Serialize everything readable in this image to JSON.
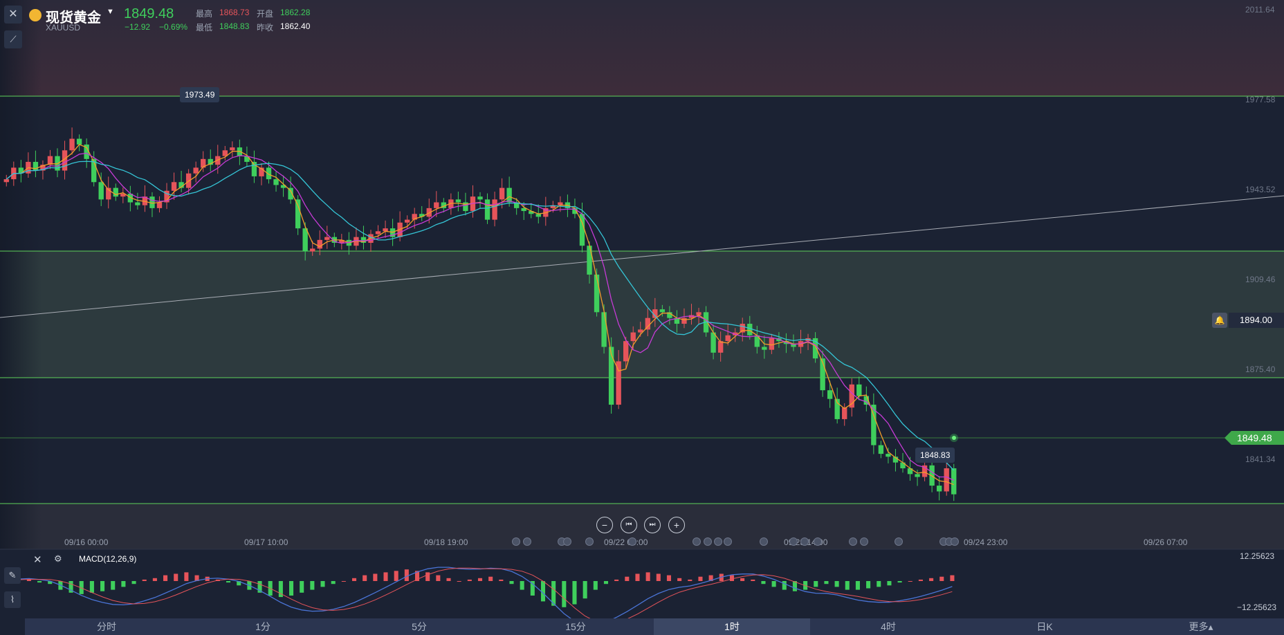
{
  "header": {
    "title": "现货黄金",
    "symbol": "XAUUSD",
    "price": "1849.48",
    "change": "−12.92",
    "change_pct": "−0.69%",
    "high_label": "最高",
    "high": "1868.73",
    "low_label": "最低",
    "low": "1848.83",
    "open_label": "开盘",
    "open": "1862.28",
    "prev_close_label": "昨收",
    "prev_close": "1862.40"
  },
  "price_axis": [
    "2011.64",
    "1977.58",
    "1943.52",
    "1909.46",
    "1875.40",
    "1841.34"
  ],
  "markers": {
    "high_tag": "1973.49",
    "low_tag": "1848.83",
    "alert_price": "1894.00",
    "current_price": "1849.48"
  },
  "time_axis": [
    "09/16 00:00",
    "09/17 10:00",
    "09/18 19:00",
    "09/22 04:00",
    "09/23 14:00",
    "09/24 23:00",
    "09/26 07:00"
  ],
  "macd": {
    "label": "MACD(12,26,9)",
    "top": "12.25623",
    "bottom": "−12.25623"
  },
  "periods": [
    {
      "label": "分时",
      "active": false
    },
    {
      "label": "1分",
      "active": false
    },
    {
      "label": "5分",
      "active": false
    },
    {
      "label": "15分",
      "active": false
    },
    {
      "label": "1时",
      "active": true
    },
    {
      "label": "4时",
      "active": false
    },
    {
      "label": "日K",
      "active": false
    },
    {
      "label": "更多▴",
      "active": false
    }
  ],
  "colors": {
    "up": "#e6545a",
    "down": "#3fcf5c",
    "ma_fast": "#f39c2a",
    "ma_mid": "#c63bd6",
    "ma_slow": "#35c5d6",
    "hline": "#5fd35a",
    "background": "#1b2233"
  },
  "chart_data": {
    "type": "candlestick",
    "y_range": [
      1830,
      2020
    ],
    "closes": [
      1958,
      1962,
      1960,
      1964,
      1961,
      1963,
      1966,
      1961,
      1968,
      1972,
      1970,
      1965,
      1957,
      1951,
      1955,
      1952,
      1953,
      1950,
      1949,
      1952,
      1948,
      1950,
      1954,
      1957,
      1955,
      1960,
      1962,
      1965,
      1963,
      1966,
      1968,
      1969,
      1966,
      1964,
      1959,
      1962,
      1958,
      1956,
      1955,
      1951,
      1941,
      1933,
      1934,
      1937,
      1938,
      1936,
      1937,
      1935,
      1938,
      1936,
      1939,
      1940,
      1941,
      1938,
      1943,
      1944,
      1946,
      1945,
      1948,
      1950,
      1948,
      1951,
      1950,
      1947,
      1952,
      1951,
      1944,
      1951,
      1955,
      1950,
      1948,
      1947,
      1946,
      1945,
      1948,
      1949,
      1950,
      1948,
      1946,
      1935,
      1925,
      1912,
      1900,
      1880,
      1895,
      1902,
      1905,
      1906,
      1910,
      1913,
      1912,
      1910,
      1908,
      1910,
      1911,
      1912,
      1905,
      1898,
      1902,
      1904,
      1905,
      1908,
      1904,
      1900,
      1899,
      1903,
      1902,
      1901,
      1900,
      1902,
      1903,
      1896,
      1885,
      1882,
      1875,
      1879,
      1887,
      1883,
      1880,
      1866,
      1863,
      1862,
      1860,
      1858,
      1856,
      1855,
      1859,
      1852,
      1850,
      1858,
      1849
    ]
  },
  "macd_data": {
    "histogram": [
      0.5,
      1,
      0.5,
      -0.5,
      -1,
      -3,
      -4,
      -4.5,
      -4,
      -3.5,
      -3,
      -2,
      -1,
      0.5,
      1,
      2,
      2.5,
      3,
      2,
      1.5,
      0.5,
      -0.5,
      -1.5,
      -3,
      -4,
      -5,
      -5.5,
      -5,
      -4,
      -3,
      -2,
      -1,
      0,
      1,
      2,
      2.5,
      3,
      3.5,
      4,
      3.5,
      3,
      2,
      1,
      0,
      0.5,
      1,
      1.5,
      0.5,
      -1,
      -3,
      -5,
      -7,
      -8.5,
      -9,
      -8,
      -6,
      -3,
      -1,
      0.5,
      1.5,
      2.5,
      3,
      2.5,
      2,
      1,
      0.5,
      1.5,
      2,
      2.5,
      2,
      1,
      0.5,
      -1,
      -2,
      -3,
      -3.5,
      -3,
      -2,
      -1,
      -2,
      -3,
      -3,
      -2.5,
      -2,
      -1.5,
      -0.5,
      0,
      0.5,
      1,
      1.5,
      2
    ]
  }
}
